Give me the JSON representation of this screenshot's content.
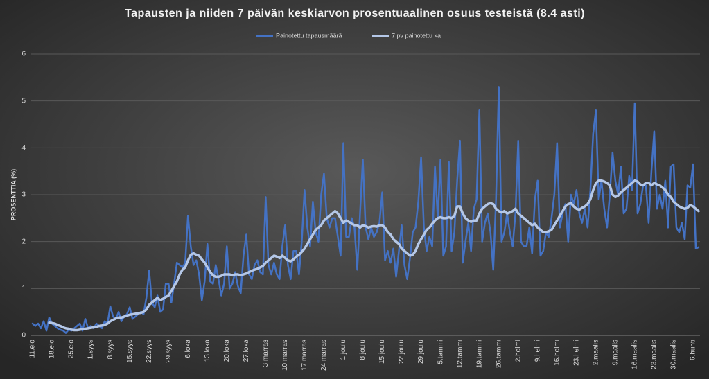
{
  "chart_data": {
    "type": "line",
    "title": "Tapausten ja niiden 7 päivän keskiarvon prosentuaalinen osuus testeistä  (8.4 asti)",
    "y_label": "PROSENTTIA (%)",
    "ylim": [
      0,
      6
    ],
    "yticks": [
      0,
      1,
      2,
      3,
      4,
      5,
      6
    ],
    "grid": true,
    "legend": "top",
    "categories": [
      "11.elo",
      null,
      null,
      null,
      null,
      null,
      null,
      "18.elo",
      null,
      null,
      null,
      null,
      null,
      null,
      "25.elo",
      null,
      null,
      null,
      null,
      null,
      null,
      "1.syys",
      null,
      null,
      null,
      null,
      null,
      null,
      "8.syys",
      null,
      null,
      null,
      null,
      null,
      null,
      "15.syys",
      null,
      null,
      null,
      null,
      null,
      null,
      "22.syys",
      null,
      null,
      null,
      null,
      null,
      null,
      "29.syys",
      null,
      null,
      null,
      null,
      null,
      null,
      "6.loka",
      null,
      null,
      null,
      null,
      null,
      null,
      "13.loka",
      null,
      null,
      null,
      null,
      null,
      null,
      "20.loka",
      null,
      null,
      null,
      null,
      null,
      null,
      "27.loka",
      null,
      null,
      null,
      null,
      null,
      null,
      "3.marras",
      null,
      null,
      null,
      null,
      null,
      null,
      "10.marras",
      null,
      null,
      null,
      null,
      null,
      null,
      "17.marras",
      null,
      null,
      null,
      null,
      null,
      null,
      "24.marras",
      null,
      null,
      null,
      null,
      null,
      null,
      "1.joulu",
      null,
      null,
      null,
      null,
      null,
      null,
      "8.joulu",
      null,
      null,
      null,
      null,
      null,
      null,
      "15.joulu",
      null,
      null,
      null,
      null,
      null,
      null,
      "22.joulu",
      null,
      null,
      null,
      null,
      null,
      null,
      "29.joulu",
      null,
      null,
      null,
      null,
      null,
      null,
      "5.tammi",
      null,
      null,
      null,
      null,
      null,
      null,
      "12.tammi",
      null,
      null,
      null,
      null,
      null,
      null,
      "19.tammi",
      null,
      null,
      null,
      null,
      null,
      null,
      "26.tammi",
      null,
      null,
      null,
      null,
      null,
      null,
      "2.helmi",
      null,
      null,
      null,
      null,
      null,
      null,
      "9.helmi",
      null,
      null,
      null,
      null,
      null,
      null,
      "16.helmi",
      null,
      null,
      null,
      null,
      null,
      null,
      "23.helmi",
      null,
      null,
      null,
      null,
      null,
      null,
      "2.maalis",
      null,
      null,
      null,
      null,
      null,
      null,
      "9.maalis",
      null,
      null,
      null,
      null,
      null,
      null,
      "16.maalis",
      null,
      null,
      null,
      null,
      null,
      null,
      "23.maalis",
      null,
      null,
      null,
      null,
      null,
      null,
      "30.maalis",
      null,
      null,
      null,
      null,
      null,
      null,
      "6.huhti",
      null,
      null
    ],
    "series": [
      {
        "name": "Painotettu tapausmäärä",
        "color": "#4472c4",
        "values": [
          0.25,
          0.2,
          0.25,
          0.15,
          0.3,
          0.1,
          0.38,
          0.25,
          0.2,
          0.15,
          0.12,
          0.1,
          0.05,
          0.12,
          0.1,
          0.15,
          0.2,
          0.25,
          0.1,
          0.35,
          0.15,
          0.2,
          0.15,
          0.25,
          0.2,
          0.15,
          0.3,
          0.25,
          0.62,
          0.4,
          0.35,
          0.5,
          0.3,
          0.4,
          0.45,
          0.6,
          0.35,
          0.4,
          0.45,
          0.5,
          0.45,
          0.8,
          1.38,
          0.7,
          0.6,
          0.85,
          0.5,
          0.55,
          1.1,
          1.1,
          0.7,
          1.1,
          1.55,
          1.5,
          1.45,
          1.55,
          2.55,
          1.9,
          1.5,
          1.6,
          1.3,
          0.75,
          1.15,
          1.95,
          1.15,
          1.1,
          1.5,
          1.2,
          0.85,
          1.1,
          1.9,
          1.0,
          1.1,
          1.35,
          1.05,
          0.9,
          1.7,
          2.15,
          1.3,
          1.2,
          1.5,
          1.6,
          1.35,
          1.3,
          2.95,
          1.5,
          1.3,
          1.55,
          1.3,
          1.2,
          1.9,
          2.35,
          1.5,
          1.2,
          1.8,
          1.8,
          1.3,
          2.0,
          3.1,
          2.3,
          1.9,
          2.85,
          2.2,
          2.0,
          3.0,
          3.45,
          2.5,
          2.3,
          2.5,
          2.5,
          2.1,
          1.7,
          4.1,
          2.1,
          2.1,
          2.5,
          2.3,
          1.4,
          2.6,
          3.75,
          2.3,
          2.05,
          2.3,
          2.1,
          2.2,
          2.4,
          3.05,
          1.6,
          1.8,
          1.55,
          1.85,
          1.25,
          1.8,
          2.35,
          1.5,
          1.2,
          1.65,
          2.2,
          2.3,
          2.85,
          3.8,
          2.3,
          1.8,
          2.1,
          1.9,
          3.6,
          2.5,
          3.75,
          1.7,
          1.9,
          3.7,
          1.8,
          2.2,
          3.3,
          4.15,
          1.55,
          2.0,
          2.4,
          1.8,
          2.7,
          2.9,
          4.8,
          2.0,
          2.4,
          2.6,
          2.2,
          1.4,
          2.9,
          5.3,
          2.0,
          2.2,
          2.6,
          2.2,
          1.9,
          2.6,
          4.15,
          2.0,
          1.9,
          1.9,
          2.3,
          1.75,
          2.9,
          3.3,
          1.7,
          1.8,
          2.2,
          2.1,
          2.5,
          3.0,
          4.1,
          2.3,
          2.6,
          2.8,
          2.0,
          3.0,
          2.8,
          3.1,
          2.6,
          2.4,
          2.7,
          2.3,
          3.1,
          4.3,
          4.8,
          2.9,
          3.3,
          2.7,
          2.3,
          3.0,
          3.9,
          3.3,
          3.0,
          3.6,
          2.6,
          2.7,
          3.4,
          3.1,
          4.95,
          2.6,
          2.8,
          3.2,
          3.2,
          2.4,
          3.5,
          4.35,
          2.7,
          3.0,
          2.7,
          3.3,
          2.3,
          3.6,
          3.65,
          2.3,
          2.2,
          2.4,
          2.05,
          3.2,
          3.15,
          3.65,
          1.85,
          1.88
        ]
      },
      {
        "name": "7 pv painotettu ka",
        "color": "#b4c7e7",
        "values": [
          null,
          null,
          null,
          null,
          null,
          null,
          0.27,
          0.26,
          0.25,
          0.22,
          0.2,
          0.17,
          0.15,
          0.14,
          0.12,
          0.11,
          0.11,
          0.12,
          0.13,
          0.14,
          0.15,
          0.16,
          0.17,
          0.18,
          0.2,
          0.21,
          0.22,
          0.25,
          0.3,
          0.33,
          0.36,
          0.38,
          0.38,
          0.4,
          0.42,
          0.44,
          0.45,
          0.46,
          0.47,
          0.48,
          0.5,
          0.55,
          0.65,
          0.7,
          0.75,
          0.8,
          0.75,
          0.78,
          0.82,
          0.85,
          0.95,
          1.05,
          1.15,
          1.3,
          1.4,
          1.45,
          1.6,
          1.72,
          1.75,
          1.72,
          1.7,
          1.62,
          1.55,
          1.45,
          1.35,
          1.28,
          1.25,
          1.25,
          1.27,
          1.3,
          1.3,
          1.3,
          1.28,
          1.3,
          1.3,
          1.28,
          1.3,
          1.32,
          1.35,
          1.38,
          1.4,
          1.42,
          1.45,
          1.48,
          1.55,
          1.6,
          1.65,
          1.7,
          1.68,
          1.65,
          1.7,
          1.65,
          1.6,
          1.58,
          1.62,
          1.68,
          1.72,
          1.78,
          1.85,
          1.95,
          2.05,
          2.15,
          2.25,
          2.3,
          2.35,
          2.45,
          2.5,
          2.55,
          2.6,
          2.65,
          2.6,
          2.5,
          2.4,
          2.45,
          2.42,
          2.38,
          2.35,
          2.35,
          2.3,
          2.35,
          2.33,
          2.3,
          2.32,
          2.33,
          2.32,
          2.35,
          2.35,
          2.3,
          2.2,
          2.15,
          2.05,
          2.0,
          1.95,
          1.85,
          1.8,
          1.75,
          1.7,
          1.72,
          1.8,
          1.95,
          2.05,
          2.15,
          2.25,
          2.3,
          2.38,
          2.45,
          2.5,
          2.52,
          2.5,
          2.5,
          2.52,
          2.5,
          2.55,
          2.75,
          2.75,
          2.6,
          2.5,
          2.45,
          2.42,
          2.45,
          2.45,
          2.6,
          2.7,
          2.75,
          2.8,
          2.82,
          2.8,
          2.7,
          2.65,
          2.62,
          2.65,
          2.6,
          2.62,
          2.65,
          2.7,
          2.6,
          2.55,
          2.5,
          2.45,
          2.4,
          2.35,
          2.38,
          2.3,
          2.25,
          2.2,
          2.2,
          2.22,
          2.25,
          2.35,
          2.45,
          2.55,
          2.65,
          2.75,
          2.8,
          2.82,
          2.75,
          2.7,
          2.68,
          2.72,
          2.75,
          2.8,
          2.9,
          3.1,
          3.25,
          3.3,
          3.3,
          3.28,
          3.25,
          3.2,
          3.0,
          2.95,
          2.98,
          3.05,
          3.1,
          3.15,
          3.2,
          3.25,
          3.3,
          3.28,
          3.22,
          3.2,
          3.25,
          3.25,
          3.2,
          3.25,
          3.22,
          3.2,
          3.15,
          3.1,
          3.0,
          2.95,
          2.85,
          2.8,
          2.75,
          2.72,
          2.7,
          2.72,
          2.78,
          2.75,
          2.7,
          2.65
        ]
      }
    ]
  }
}
